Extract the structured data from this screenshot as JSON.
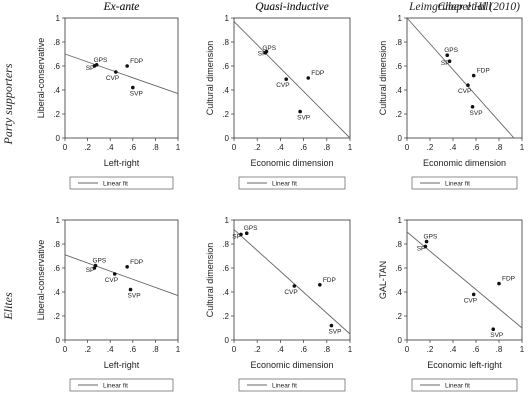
{
  "row_labels": [
    "Party supporters",
    "Elites"
  ],
  "legend_label": "Linear fit",
  "chart_data": [
    {
      "type": "scatter",
      "title": "Ex-ante",
      "xlabel": "Left-right",
      "ylabel": "Liberal-conservative",
      "xlim": [
        0,
        1
      ],
      "ylim": [
        0,
        1
      ],
      "xticks": [
        "0",
        ".2",
        ".4",
        ".6",
        ".8",
        "1"
      ],
      "yticks": [
        "0",
        ".2",
        ".4",
        ".6",
        ".8",
        "1"
      ],
      "points": [
        {
          "label": "SP",
          "x": 0.26,
          "y": 0.6
        },
        {
          "label": "GPS",
          "x": 0.28,
          "y": 0.61
        },
        {
          "label": "CVP",
          "x": 0.45,
          "y": 0.55
        },
        {
          "label": "FDP",
          "x": 0.55,
          "y": 0.6
        },
        {
          "label": "SVP",
          "x": 0.6,
          "y": 0.42
        }
      ],
      "fit": [
        [
          0,
          0.7
        ],
        [
          1,
          0.37
        ]
      ]
    },
    {
      "type": "scatter",
      "title": "Quasi-inductive",
      "xlabel": "Economic dimension",
      "ylabel": "Cultural dimension",
      "xlim": [
        0,
        1
      ],
      "ylim": [
        0,
        1
      ],
      "xticks": [
        "0",
        ".2",
        ".4",
        ".6",
        ".8",
        "1"
      ],
      "yticks": [
        "0",
        ".2",
        ".4",
        ".6",
        ".8",
        "1"
      ],
      "points": [
        {
          "label": "SP",
          "x": 0.28,
          "y": 0.72
        },
        {
          "label": "GPS",
          "x": 0.27,
          "y": 0.71
        },
        {
          "label": "CVP",
          "x": 0.45,
          "y": 0.49
        },
        {
          "label": "FDP",
          "x": 0.64,
          "y": 0.5
        },
        {
          "label": "SVP",
          "x": 0.57,
          "y": 0.22
        }
      ],
      "fit": [
        [
          0,
          0.97
        ],
        [
          1,
          0
        ]
      ]
    },
    {
      "type": "scatter",
      "title": "Leimgruber et al (2010)",
      "xlabel": "Economic dimension",
      "ylabel": "Cultural dimension",
      "xlim": [
        0,
        1
      ],
      "ylim": [
        0,
        1
      ],
      "xticks": [
        "0",
        ".2",
        ".4",
        ".6",
        ".8",
        "1"
      ],
      "yticks": [
        "0",
        ".2",
        ".4",
        ".6",
        ".8",
        "1"
      ],
      "points": [
        {
          "label": "GPS",
          "x": 0.35,
          "y": 0.69
        },
        {
          "label": "SP",
          "x": 0.37,
          "y": 0.64
        },
        {
          "label": "FDP",
          "x": 0.58,
          "y": 0.52
        },
        {
          "label": "CVP",
          "x": 0.53,
          "y": 0.44
        },
        {
          "label": "SVP",
          "x": 0.57,
          "y": 0.26
        }
      ],
      "fit": [
        [
          0,
          1.0
        ],
        [
          0.93,
          0
        ]
      ]
    },
    {
      "type": "scatter",
      "title": "Ex-ante",
      "xlabel": "Left-right",
      "ylabel": "Liberal-conservative",
      "xlim": [
        0,
        1
      ],
      "ylim": [
        0,
        1
      ],
      "xticks": [
        "0",
        ".2",
        ".4",
        ".6",
        ".8",
        "1"
      ],
      "yticks": [
        "0",
        ".2",
        ".4",
        ".6",
        ".8",
        "1"
      ],
      "points": [
        {
          "label": "GPS",
          "x": 0.27,
          "y": 0.62
        },
        {
          "label": "SP",
          "x": 0.26,
          "y": 0.6
        },
        {
          "label": "CVP",
          "x": 0.44,
          "y": 0.55
        },
        {
          "label": "FDP",
          "x": 0.55,
          "y": 0.61
        },
        {
          "label": "SVP",
          "x": 0.58,
          "y": 0.42
        }
      ],
      "fit": [
        [
          0,
          0.71
        ],
        [
          1,
          0.37
        ]
      ]
    },
    {
      "type": "scatter",
      "title": "Quasi-inductive",
      "xlabel": "Economic dimension",
      "ylabel": "Cultural dimension",
      "xlim": [
        0,
        1
      ],
      "ylim": [
        0,
        1
      ],
      "xticks": [
        "0",
        ".2",
        ".4",
        ".6",
        ".8",
        "1"
      ],
      "yticks": [
        "0",
        ".2",
        ".4",
        ".6",
        ".8",
        "1"
      ],
      "points": [
        {
          "label": "SP",
          "x": 0.06,
          "y": 0.88
        },
        {
          "label": "GPS",
          "x": 0.11,
          "y": 0.89
        },
        {
          "label": "CVP",
          "x": 0.52,
          "y": 0.45
        },
        {
          "label": "FDP",
          "x": 0.74,
          "y": 0.46
        },
        {
          "label": "SVP",
          "x": 0.84,
          "y": 0.12
        }
      ],
      "fit": [
        [
          0,
          0.92
        ],
        [
          1,
          0.05
        ]
      ]
    },
    {
      "type": "scatter",
      "title": "Chapel Hill",
      "xlabel": "Economic left-right",
      "ylabel": "GAL-TAN",
      "xlim": [
        0,
        1
      ],
      "ylim": [
        0,
        1
      ],
      "xticks": [
        "0",
        ".2",
        ".4",
        ".6",
        ".8",
        "1"
      ],
      "yticks": [
        "0",
        ".2",
        ".4",
        ".6",
        ".8",
        "1"
      ],
      "points": [
        {
          "label": "GPS",
          "x": 0.17,
          "y": 0.82
        },
        {
          "label": "SP",
          "x": 0.16,
          "y": 0.78
        },
        {
          "label": "CVP",
          "x": 0.58,
          "y": 0.38
        },
        {
          "label": "FDP",
          "x": 0.8,
          "y": 0.47
        },
        {
          "label": "SVP",
          "x": 0.75,
          "y": 0.09
        }
      ],
      "fit": [
        [
          0,
          0.9
        ],
        [
          1,
          0.1
        ]
      ]
    }
  ]
}
